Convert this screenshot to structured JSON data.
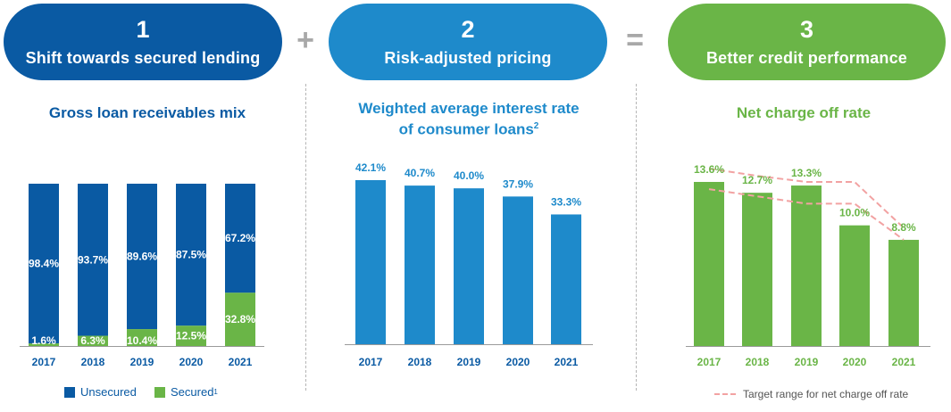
{
  "steps": [
    {
      "number": "1",
      "label": "Shift towards secured lending",
      "color": "#0a5aa3"
    },
    {
      "number": "2",
      "label": "Risk-adjusted pricing",
      "color": "#1e8acb"
    },
    {
      "number": "3",
      "label": "Better credit performance",
      "color": "#6ab547"
    }
  ],
  "operators": {
    "plus": "+",
    "equals": "="
  },
  "chart_data": [
    {
      "type": "bar",
      "stacked": true,
      "title": "Gross loan receivables mix",
      "categories": [
        "2017",
        "2018",
        "2019",
        "2020",
        "2021"
      ],
      "series": [
        {
          "name": "Unsecured",
          "values": [
            98.4,
            93.7,
            89.6,
            87.5,
            67.2
          ],
          "labels": [
            "98.4%",
            "93.7%",
            "89.6%",
            "87.5%",
            "67.2%"
          ],
          "color": "#0a5aa3"
        },
        {
          "name": "Secured",
          "name_sup": "1",
          "values": [
            1.6,
            6.3,
            10.4,
            12.5,
            32.8
          ],
          "labels": [
            "1.6%",
            "6.3%",
            "10.4%",
            "12.5%",
            "32.8%"
          ],
          "color": "#6ab547"
        }
      ],
      "ylim": [
        0,
        100
      ],
      "legend": "bottom"
    },
    {
      "type": "bar",
      "title_line1": "Weighted average interest rate",
      "title_line2": "of consumer loans",
      "title_sup": "2",
      "categories": [
        "2017",
        "2018",
        "2019",
        "2020",
        "2021"
      ],
      "values": [
        42.1,
        40.7,
        40.0,
        37.9,
        33.3
      ],
      "labels": [
        "42.1%",
        "40.7%",
        "40.0%",
        "37.9%",
        "33.3%"
      ],
      "color": "#1e8acb"
    },
    {
      "type": "bar",
      "title": "Net charge off rate",
      "categories": [
        "2017",
        "2018",
        "2019",
        "2020",
        "2021"
      ],
      "values": [
        13.6,
        12.7,
        13.3,
        10.0,
        8.8
      ],
      "labels": [
        "13.6%",
        "12.7%",
        "13.3%",
        "10.0%",
        "8.8%"
      ],
      "color": "#6ab547",
      "target_range": {
        "name": "Target range for net charge off rate",
        "upper": [
          14.7,
          14.1,
          13.6,
          13.6,
          9.8
        ],
        "lower": [
          13.0,
          12.4,
          11.8,
          11.8,
          8.8
        ],
        "color": "#f2a2a2"
      },
      "legend": "bottom"
    }
  ]
}
